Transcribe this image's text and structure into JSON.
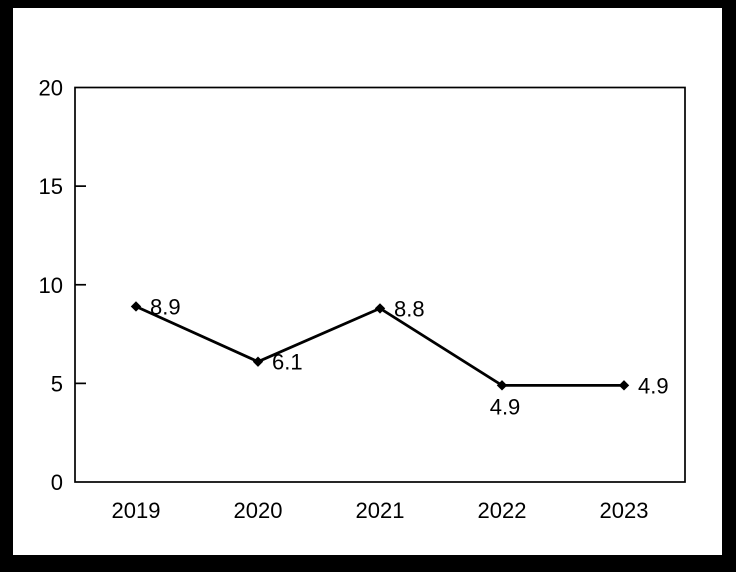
{
  "background": {
    "frame_color": "#000000",
    "paper_color": "#ffffff"
  },
  "chart_data": {
    "type": "line",
    "categories": [
      "2019",
      "2020",
      "2021",
      "2022",
      "2023"
    ],
    "values": [
      8.9,
      6.1,
      8.8,
      4.9,
      4.9
    ],
    "data_labels": [
      "8.9",
      "6.1",
      "8.8",
      "4.9",
      "4.9"
    ],
    "label_positions": [
      "right",
      "right",
      "right",
      "below",
      "right"
    ],
    "title": "",
    "xlabel": "",
    "ylabel": "",
    "ylim": [
      0,
      20
    ],
    "yticks": [
      0,
      5,
      10,
      15,
      20
    ],
    "grid": false,
    "legend": "none",
    "line_color": "#000000",
    "marker": "diamond",
    "text_color": "#000000"
  }
}
